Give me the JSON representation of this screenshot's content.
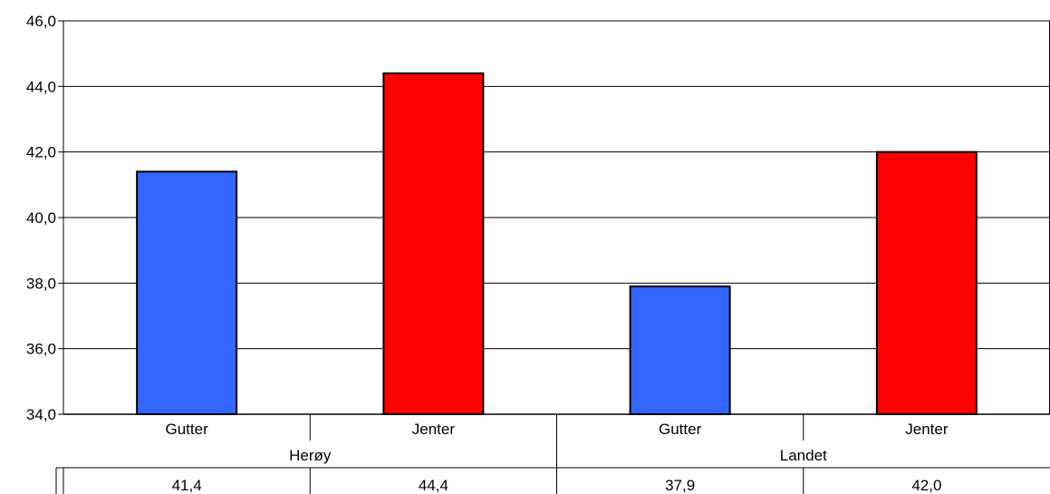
{
  "chart_data": {
    "type": "bar",
    "groups": [
      {
        "name": "Herøy",
        "categories": [
          "Gutter",
          "Jenter"
        ],
        "values": [
          41.4,
          44.4
        ]
      },
      {
        "name": "Landet",
        "categories": [
          "Gutter",
          "Jenter"
        ],
        "values": [
          37.9,
          42.0
        ]
      }
    ],
    "value_labels": [
      "41,4",
      "44,4",
      "37,9",
      "42,0"
    ],
    "bar_colors": [
      "#3366ff",
      "#ff0000",
      "#3366ff",
      "#ff0000"
    ],
    "ylim": [
      34,
      46
    ],
    "yticks": [
      "34,0",
      "36,0",
      "38,0",
      "40,0",
      "42,0",
      "44,0",
      "46,0"
    ],
    "grid": true,
    "title": "",
    "xlabel": "",
    "ylabel": "",
    "data_table": true
  }
}
